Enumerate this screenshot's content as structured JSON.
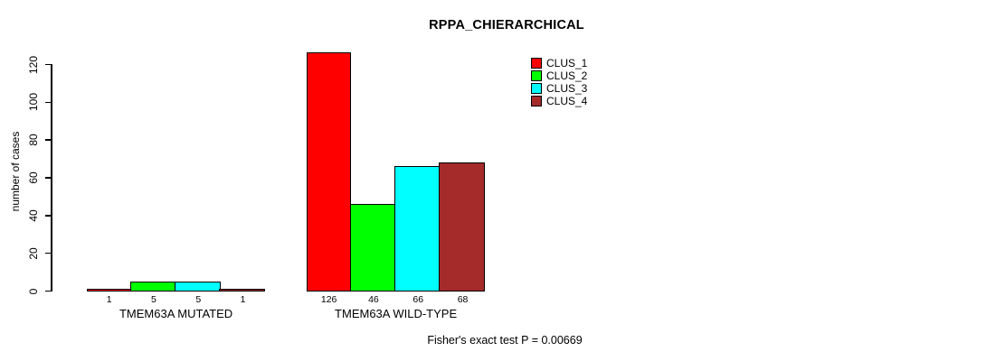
{
  "chart_data": {
    "type": "bar",
    "title": "RPPA_CHIERARCHICAL",
    "ylabel": "number of cases",
    "xlabel": "",
    "ylim": [
      0,
      120
    ],
    "yticks": [
      0,
      20,
      40,
      60,
      80,
      100,
      120
    ],
    "grid": false,
    "legend_position": "top-right",
    "categories": [
      "TMEM63A MUTATED",
      "TMEM63A WILD-TYPE"
    ],
    "series": [
      {
        "name": "CLUS_1",
        "color": "#ff0000",
        "values": [
          1,
          126
        ]
      },
      {
        "name": "CLUS_2",
        "color": "#00ff00",
        "values": [
          5,
          46
        ]
      },
      {
        "name": "CLUS_3",
        "color": "#00ffff",
        "values": [
          5,
          66
        ]
      },
      {
        "name": "CLUS_4",
        "color": "#a52a2a",
        "values": [
          1,
          68
        ]
      }
    ],
    "bar_labels_shown": true,
    "annotation": "Fisher's exact test P = 0.00669",
    "axis_color": "#000000",
    "background_color": "#ffffff"
  }
}
